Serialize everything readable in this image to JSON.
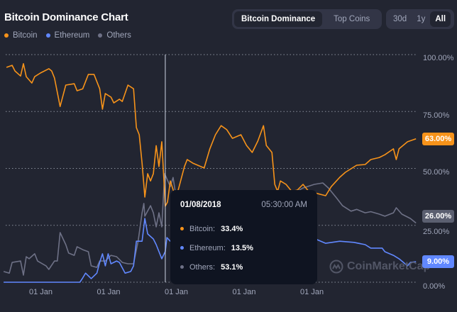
{
  "header": {
    "title": "Bitcoin Dominance Chart",
    "view_tabs": [
      {
        "label": "Bitcoin Dominance",
        "active": true
      },
      {
        "label": "Top Coins",
        "active": false
      }
    ],
    "range_tabs": [
      {
        "label": "30d",
        "active": false
      },
      {
        "label": "1y",
        "active": false
      },
      {
        "label": "All",
        "active": true
      }
    ]
  },
  "legend": [
    {
      "label": "Bitcoin",
      "color": "#f7931a"
    },
    {
      "label": "Ethereum",
      "color": "#6188ff"
    },
    {
      "label": "Others",
      "color": "#6e7186"
    }
  ],
  "watermark": "CoinMarketCap",
  "tooltip": {
    "date": "01/08/2018",
    "time": "05:30:00 AM",
    "rows": [
      {
        "label": "Bitcoin:",
        "value": "33.4%",
        "color": "#f7931a"
      },
      {
        "label": "Ethereum:",
        "value": "13.5%",
        "color": "#6188ff"
      },
      {
        "label": "Others:",
        "value": "53.1%",
        "color": "#6e7186"
      }
    ]
  },
  "chart_data": {
    "type": "line",
    "title": "",
    "xlabel": "",
    "ylabel": "",
    "ylim": [
      0,
      100
    ],
    "grid": true,
    "legend_placement": "top-left",
    "y_ticks": [
      "100.00%",
      "75.00%",
      "50.00%",
      "25.00%",
      "0.00%"
    ],
    "x_ticks": [
      {
        "date": "2014-01",
        "label": "01 Jan"
      },
      {
        "date": "2016-01",
        "label": "01 Jan"
      },
      {
        "date": "2018-01",
        "label": "01 Jan"
      },
      {
        "date": "2020-01",
        "label": "01 Jan"
      },
      {
        "date": "2022-01",
        "label": "01 Jan"
      }
    ],
    "crosshair_date": "2018-01-08",
    "current_badges": [
      {
        "series": "Bitcoin",
        "label": "63.00%",
        "value": 63,
        "color": "#f7931a"
      },
      {
        "series": "Others",
        "label": "26.00%",
        "value": 26,
        "color": "#5b5f70"
      },
      {
        "series": "Ethereum",
        "label": "9.00%",
        "value": 9,
        "color": "#6188ff"
      }
    ],
    "series": [
      {
        "name": "Bitcoin",
        "color": "#f7931a",
        "points": [
          [
            "2013-05",
            94.4
          ],
          [
            "2013-07",
            95.3
          ],
          [
            "2013-08",
            92.8
          ],
          [
            "2013-10",
            90.6
          ],
          [
            "2013-11",
            96
          ],
          [
            "2013-12",
            90.3
          ],
          [
            "2014-02",
            87.5
          ],
          [
            "2014-03",
            90.3
          ],
          [
            "2014-05",
            91.9
          ],
          [
            "2014-08",
            93.8
          ],
          [
            "2014-09",
            92.8
          ],
          [
            "2014-10",
            89.7
          ],
          [
            "2014-12",
            77.2
          ],
          [
            "2015-02",
            86.6
          ],
          [
            "2015-05",
            87.2
          ],
          [
            "2015-06",
            84.1
          ],
          [
            "2015-08",
            85
          ],
          [
            "2015-10",
            91.3
          ],
          [
            "2015-12",
            91.3
          ],
          [
            "2016-02",
            85
          ],
          [
            "2016-03",
            76
          ],
          [
            "2016-04",
            82.9
          ],
          [
            "2016-06",
            81.3
          ],
          [
            "2016-07",
            78.8
          ],
          [
            "2016-09",
            80.4
          ],
          [
            "2016-10",
            79.4
          ],
          [
            "2016-12",
            86.6
          ],
          [
            "2017-02",
            85
          ],
          [
            "2017-03",
            67.9
          ],
          [
            "2017-04",
            64.8
          ],
          [
            "2017-05",
            52.3
          ],
          [
            "2017-06",
            37.4
          ],
          [
            "2017-07",
            47.7
          ],
          [
            "2017-08",
            44.5
          ],
          [
            "2017-09",
            47.7
          ],
          [
            "2017-10",
            60
          ],
          [
            "2017-11",
            50.8
          ],
          [
            "2017-12",
            61.7
          ],
          [
            "2017-12-20",
            47.7
          ],
          [
            "2018-01-08",
            33.4
          ],
          [
            "2018-02",
            35.2
          ],
          [
            "2018-03",
            44.5
          ],
          [
            "2018-05",
            36.8
          ],
          [
            "2018-06",
            41.4
          ],
          [
            "2018-08",
            50.8
          ],
          [
            "2018-09",
            53.9
          ],
          [
            "2018-11",
            52.3
          ],
          [
            "2019-03",
            50.2
          ],
          [
            "2019-05",
            58.6
          ],
          [
            "2019-07",
            64.8
          ],
          [
            "2019-09",
            68.8
          ],
          [
            "2019-11",
            67
          ],
          [
            "2020-01",
            63.2
          ],
          [
            "2020-04",
            64.8
          ],
          [
            "2020-06",
            60.1
          ],
          [
            "2020-08",
            57
          ],
          [
            "2020-10",
            62
          ],
          [
            "2020-12",
            68.8
          ],
          [
            "2021-01",
            60.1
          ],
          [
            "2021-03",
            57
          ],
          [
            "2021-04",
            43
          ],
          [
            "2021-05",
            39.9
          ],
          [
            "2021-06",
            44.5
          ],
          [
            "2021-08",
            43
          ],
          [
            "2021-10",
            39.9
          ],
          [
            "2021-12",
            40.5
          ],
          [
            "2022-02",
            43
          ],
          [
            "2022-04",
            39.9
          ],
          [
            "2022-06",
            39.3
          ],
          [
            "2022-10",
            38
          ],
          [
            "2022-12",
            42
          ],
          [
            "2023-03",
            46.1
          ],
          [
            "2023-05",
            48.3
          ],
          [
            "2023-09",
            51.4
          ],
          [
            "2023-12",
            51.7
          ],
          [
            "2024-02",
            53.9
          ],
          [
            "2024-05",
            54.8
          ],
          [
            "2024-07",
            56
          ],
          [
            "2024-10",
            58.6
          ],
          [
            "2024-11",
            53.9
          ],
          [
            "2024-12",
            58.6
          ],
          [
            "2025-03",
            61.7
          ],
          [
            "2025-06",
            63
          ]
        ]
      },
      {
        "name": "Ethereum",
        "color": "#6188ff",
        "points": [
          [
            "2013-04",
            0
          ],
          [
            "2015-07",
            0
          ],
          [
            "2015-08",
            1.9
          ],
          [
            "2015-09",
            4
          ],
          [
            "2015-11",
            1.6
          ],
          [
            "2016-01",
            4
          ],
          [
            "2016-02",
            8.7
          ],
          [
            "2016-03",
            12.5
          ],
          [
            "2016-04",
            7.2
          ],
          [
            "2016-05",
            12.5
          ],
          [
            "2016-06",
            8.1
          ],
          [
            "2016-08",
            9.3
          ],
          [
            "2016-09",
            8.7
          ],
          [
            "2016-11",
            4
          ],
          [
            "2017-01",
            4.7
          ],
          [
            "2017-02",
            7.2
          ],
          [
            "2017-03",
            18
          ],
          [
            "2017-05",
            18
          ],
          [
            "2017-06",
            28
          ],
          [
            "2017-07",
            21.2
          ],
          [
            "2017-09",
            19
          ],
          [
            "2017-10",
            16.5
          ],
          [
            "2017-12",
            10.3
          ],
          [
            "2018-01-08",
            13.5
          ],
          [
            "2018-01-25",
            19.6
          ],
          [
            "2018-03",
            18
          ],
          [
            "2018-05",
            19.6
          ],
          [
            "2019-01",
            16.5
          ],
          [
            "2019-06",
            21.2
          ],
          [
            "2019-11",
            19.6
          ],
          [
            "2020-06",
            15
          ],
          [
            "2021-02",
            16.5
          ],
          [
            "2021-07",
            22.4
          ],
          [
            "2021-12",
            19.6
          ],
          [
            "2022-05",
            19.6
          ],
          [
            "2022-07",
            18.7
          ],
          [
            "2022-10",
            17.1
          ],
          [
            "2023-03",
            18
          ],
          [
            "2023-08",
            17.5
          ],
          [
            "2023-12",
            16.5
          ],
          [
            "2024-02",
            15
          ],
          [
            "2024-06",
            15
          ],
          [
            "2024-07",
            13.4
          ],
          [
            "2024-10",
            11.8
          ],
          [
            "2024-12",
            10.3
          ],
          [
            "2025-03",
            7.2
          ],
          [
            "2025-04",
            8.7
          ],
          [
            "2025-06",
            9
          ]
        ]
      },
      {
        "name": "Others",
        "color": "#6e7186",
        "points": [
          [
            "2013-04",
            4.7
          ],
          [
            "2013-06",
            4
          ],
          [
            "2013-07",
            8.7
          ],
          [
            "2013-10",
            9.3
          ],
          [
            "2013-11",
            3.1
          ],
          [
            "2013-12",
            11.2
          ],
          [
            "2014-01",
            10.3
          ],
          [
            "2014-03",
            12.5
          ],
          [
            "2014-04",
            9.3
          ],
          [
            "2014-07",
            7.2
          ],
          [
            "2014-08",
            5.6
          ],
          [
            "2014-10",
            9.3
          ],
          [
            "2014-11",
            9.3
          ],
          [
            "2014-12",
            21.8
          ],
          [
            "2015-02",
            16.5
          ],
          [
            "2015-03",
            12.8
          ],
          [
            "2015-05",
            11.8
          ],
          [
            "2015-06",
            15.6
          ],
          [
            "2015-08",
            14.3
          ],
          [
            "2015-10",
            13.4
          ],
          [
            "2015-11",
            7.2
          ],
          [
            "2016-01",
            6.5
          ],
          [
            "2016-02",
            9.3
          ],
          [
            "2016-04",
            9.3
          ],
          [
            "2016-06",
            11.8
          ],
          [
            "2016-08",
            11.2
          ],
          [
            "2016-10",
            8.7
          ],
          [
            "2016-12",
            8.1
          ],
          [
            "2017-02",
            8.1
          ],
          [
            "2017-03-20",
            18.1
          ],
          [
            "2017-05",
            30.5
          ],
          [
            "2017-05-20",
            34.6
          ],
          [
            "2017-06",
            29
          ],
          [
            "2017-08",
            33.6
          ],
          [
            "2017-09",
            30.5
          ],
          [
            "2017-10",
            24.3
          ],
          [
            "2017-11",
            30.5
          ],
          [
            "2017-12",
            24.3
          ],
          [
            "2018-01",
            47.7
          ],
          [
            "2018-03",
            42
          ],
          [
            "2018-04",
            46
          ],
          [
            "2018-05",
            38
          ],
          [
            "2018-06",
            40
          ],
          [
            "2018-08",
            33.6
          ],
          [
            "2018-10",
            38
          ],
          [
            "2019-01",
            36.8
          ],
          [
            "2019-03",
            40
          ],
          [
            "2019-05",
            30.5
          ],
          [
            "2019-08",
            35.2
          ],
          [
            "2019-11",
            32
          ],
          [
            "2020-01",
            38
          ],
          [
            "2020-04",
            40
          ],
          [
            "2020-06",
            33.6
          ],
          [
            "2020-09",
            36.8
          ],
          [
            "2020-11",
            33.6
          ],
          [
            "2021-02",
            38
          ],
          [
            "2021-03",
            35.2
          ],
          [
            "2021-04",
            38.3
          ],
          [
            "2021-07",
            40
          ],
          [
            "2021-09",
            37
          ],
          [
            "2021-12",
            40
          ],
          [
            "2022-02",
            41.4
          ],
          [
            "2022-06",
            43
          ],
          [
            "2022-09",
            43.6
          ],
          [
            "2022-11",
            41.4
          ],
          [
            "2023-02",
            36.8
          ],
          [
            "2023-04",
            33.6
          ],
          [
            "2023-07",
            31.2
          ],
          [
            "2023-09",
            32
          ],
          [
            "2023-12",
            30.5
          ],
          [
            "2024-02",
            31
          ],
          [
            "2024-05",
            29.9
          ],
          [
            "2024-07",
            29
          ],
          [
            "2024-10",
            30.5
          ],
          [
            "2024-11",
            32.7
          ],
          [
            "2025-01",
            29.9
          ],
          [
            "2025-04",
            28
          ],
          [
            "2025-06",
            26
          ]
        ]
      }
    ]
  }
}
